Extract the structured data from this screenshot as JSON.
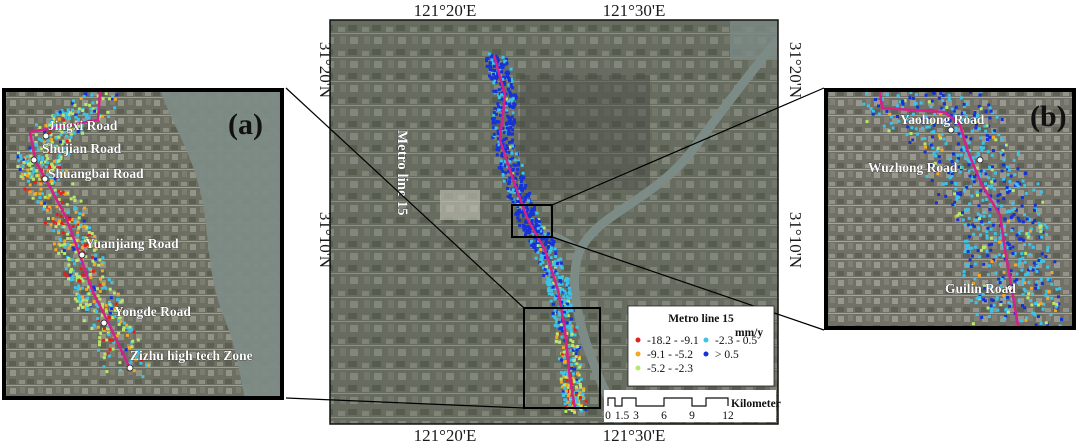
{
  "coordinates": {
    "lon_top_left": "121°20'E",
    "lon_top_right": "121°30'E",
    "lon_bottom_left": "121°20'E",
    "lon_bottom_right": "121°30'E",
    "lat_left_top": "31°20'N",
    "lat_left_bottom": "31°10'N",
    "lat_right_top": "31°20'N",
    "lat_right_bottom": "31°10'N"
  },
  "main_map": {
    "line_label": "Metro line 15"
  },
  "panel_a": {
    "letter": "(a)",
    "stations": [
      "Jingxi Road",
      "Shujian Road",
      "Shuangbai Road",
      "Yuanjiang Road",
      "Yongde Road",
      "Zizhu high tech Zone"
    ]
  },
  "panel_b": {
    "letter": "(b)",
    "stations": [
      "Yaohong Road",
      "Wuzhong Road",
      "Guilin Road"
    ]
  },
  "legend": {
    "title": "Metro line 15",
    "unit": "mm/y",
    "classes": [
      {
        "label": "-18.2 - -9.1",
        "color": "#e4201c"
      },
      {
        "label": "-9.1 - -5.2",
        "color": "#f5a623"
      },
      {
        "label": "-5.2 - -2.3",
        "color": "#b8e86a"
      },
      {
        "label": "-2.3 - 0.5",
        "color": "#3cc3e8"
      },
      {
        "label": "> 0.5",
        "color": "#1432d8"
      }
    ]
  },
  "scalebar": {
    "unit": "Kilometer",
    "ticks": [
      "0",
      "1.5",
      "3",
      "6",
      "9",
      "12"
    ]
  },
  "colors": {
    "metro_line": "#d6208a",
    "water": "#7d8b86"
  }
}
